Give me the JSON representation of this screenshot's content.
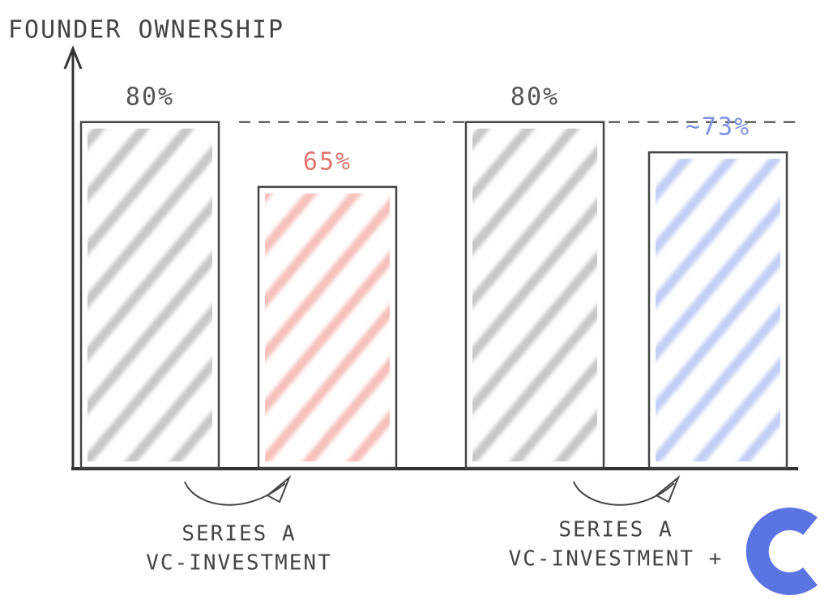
{
  "chart_data": {
    "type": "bar",
    "title": "FOUNDER OWNERSHIP",
    "categories": [
      null,
      null,
      null,
      null
    ],
    "values": [
      80,
      65,
      80,
      73
    ],
    "value_labels": [
      "80%",
      "65%",
      "80%",
      "~73%"
    ],
    "colors": [
      "#9a9a9a",
      "#f08c84",
      "#9a9a9a",
      "#8fa6ef"
    ],
    "label_colors": [
      "#555555",
      "#e0756c",
      "#555555",
      "#7d92e0"
    ],
    "reference_line": 80,
    "ylim": [
      0,
      97
    ],
    "annotations": [
      [
        "SERIES A",
        "VC-INVESTMENT"
      ],
      [
        "SERIES A",
        "VC-INVESTMENT +"
      ]
    ]
  }
}
